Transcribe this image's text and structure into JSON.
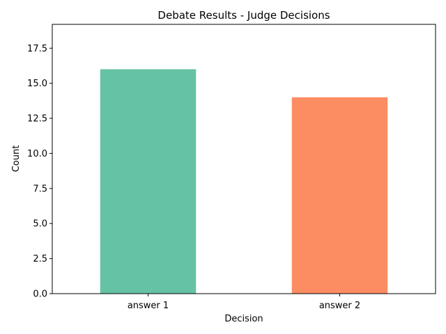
{
  "chart_data": {
    "type": "bar",
    "title": "Debate Results - Judge Decisions",
    "xlabel": "Decision",
    "ylabel": "Count",
    "categories": [
      "answer 1",
      "answer 2"
    ],
    "values": [
      16,
      14
    ],
    "colors": [
      "#66c2a5",
      "#fc8d62"
    ],
    "ylim": [
      0,
      19.2
    ],
    "yticks": [
      0.0,
      2.5,
      5.0,
      7.5,
      10.0,
      12.5,
      15.0,
      17.5
    ],
    "ytick_labels": [
      "0.0",
      "2.5",
      "5.0",
      "7.5",
      "10.0",
      "12.5",
      "15.0",
      "17.5"
    ],
    "grid": false,
    "legend": "none"
  }
}
